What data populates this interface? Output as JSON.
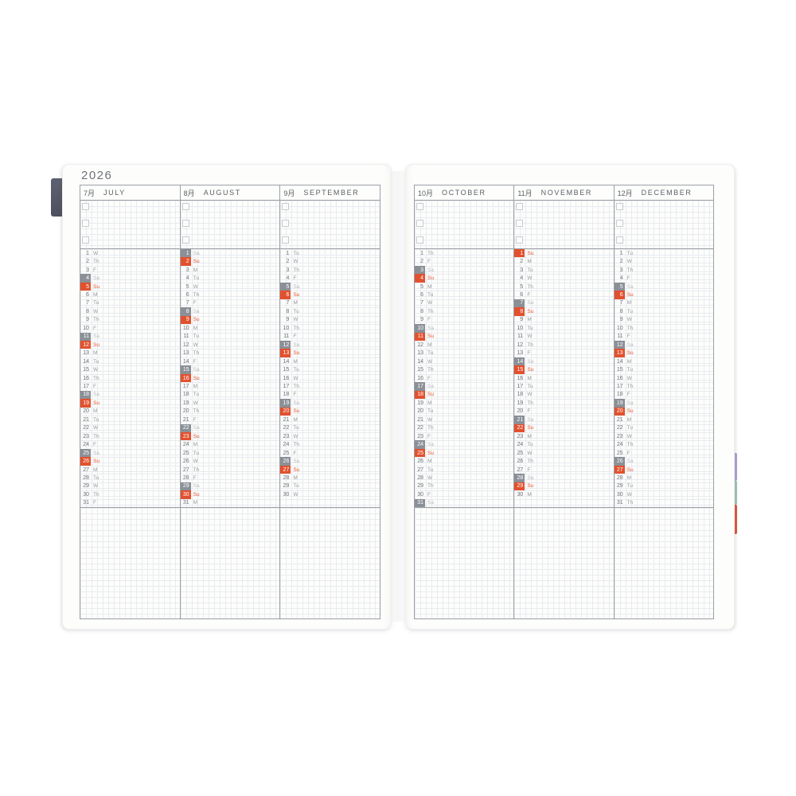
{
  "year": "2026",
  "pages": [
    {
      "side": "left",
      "show_year": true,
      "months": [
        {
          "jp": "7月",
          "en": "JULY",
          "days": [
            [
              1,
              "W"
            ],
            [
              2,
              "Th"
            ],
            [
              3,
              "F"
            ],
            [
              4,
              "Sa"
            ],
            [
              5,
              "Su"
            ],
            [
              6,
              "M"
            ],
            [
              7,
              "Tu"
            ],
            [
              8,
              "W"
            ],
            [
              9,
              "Th"
            ],
            [
              10,
              "F"
            ],
            [
              11,
              "Sa"
            ],
            [
              12,
              "Su"
            ],
            [
              13,
              "M"
            ],
            [
              14,
              "Tu"
            ],
            [
              15,
              "W"
            ],
            [
              16,
              "Th"
            ],
            [
              17,
              "F"
            ],
            [
              18,
              "Sa"
            ],
            [
              19,
              "Su"
            ],
            [
              20,
              "M"
            ],
            [
              21,
              "Tu"
            ],
            [
              22,
              "W"
            ],
            [
              23,
              "Th"
            ],
            [
              24,
              "F"
            ],
            [
              25,
              "Sa"
            ],
            [
              26,
              "Su"
            ],
            [
              27,
              "M"
            ],
            [
              28,
              "Tu"
            ],
            [
              29,
              "W"
            ],
            [
              30,
              "Th"
            ],
            [
              31,
              "F"
            ]
          ]
        },
        {
          "jp": "8月",
          "en": "AUGUST",
          "days": [
            [
              1,
              "Sa"
            ],
            [
              2,
              "Su"
            ],
            [
              3,
              "M"
            ],
            [
              4,
              "Tu"
            ],
            [
              5,
              "W"
            ],
            [
              6,
              "Th"
            ],
            [
              7,
              "F"
            ],
            [
              8,
              "Sa"
            ],
            [
              9,
              "Su"
            ],
            [
              10,
              "M"
            ],
            [
              11,
              "Tu"
            ],
            [
              12,
              "W"
            ],
            [
              13,
              "Th"
            ],
            [
              14,
              "F"
            ],
            [
              15,
              "Sa"
            ],
            [
              16,
              "Su"
            ],
            [
              17,
              "M"
            ],
            [
              18,
              "Tu"
            ],
            [
              19,
              "W"
            ],
            [
              20,
              "Th"
            ],
            [
              21,
              "F"
            ],
            [
              22,
              "Sa"
            ],
            [
              23,
              "Su"
            ],
            [
              24,
              "M"
            ],
            [
              25,
              "Tu"
            ],
            [
              26,
              "W"
            ],
            [
              27,
              "Th"
            ],
            [
              28,
              "F"
            ],
            [
              29,
              "Sa"
            ],
            [
              30,
              "Su"
            ],
            [
              31,
              "M"
            ]
          ]
        },
        {
          "jp": "9月",
          "en": "SEPTEMBER",
          "days": [
            [
              1,
              "Tu"
            ],
            [
              2,
              "W"
            ],
            [
              3,
              "Th"
            ],
            [
              4,
              "F"
            ],
            [
              5,
              "Sa"
            ],
            [
              6,
              "Su"
            ],
            [
              7,
              "M"
            ],
            [
              8,
              "Tu"
            ],
            [
              9,
              "W"
            ],
            [
              10,
              "Th"
            ],
            [
              11,
              "F"
            ],
            [
              12,
              "Sa"
            ],
            [
              13,
              "Su"
            ],
            [
              14,
              "M"
            ],
            [
              15,
              "Tu"
            ],
            [
              16,
              "W"
            ],
            [
              17,
              "Th"
            ],
            [
              18,
              "F"
            ],
            [
              19,
              "Sa"
            ],
            [
              20,
              "Su"
            ],
            [
              21,
              "M"
            ],
            [
              22,
              "Tu"
            ],
            [
              23,
              "W"
            ],
            [
              24,
              "Th"
            ],
            [
              25,
              "F"
            ],
            [
              26,
              "Sa"
            ],
            [
              27,
              "Su"
            ],
            [
              28,
              "M"
            ],
            [
              29,
              "Tu"
            ],
            [
              30,
              "W"
            ]
          ]
        }
      ]
    },
    {
      "side": "right",
      "show_year": false,
      "months": [
        {
          "jp": "10月",
          "en": "OCTOBER",
          "days": [
            [
              1,
              "Th"
            ],
            [
              2,
              "F"
            ],
            [
              3,
              "Sa"
            ],
            [
              4,
              "Su"
            ],
            [
              5,
              "M"
            ],
            [
              6,
              "Tu"
            ],
            [
              7,
              "W"
            ],
            [
              8,
              "Th"
            ],
            [
              9,
              "F"
            ],
            [
              10,
              "Sa"
            ],
            [
              11,
              "Su"
            ],
            [
              12,
              "M"
            ],
            [
              13,
              "Tu"
            ],
            [
              14,
              "W"
            ],
            [
              15,
              "Th"
            ],
            [
              16,
              "F"
            ],
            [
              17,
              "Sa"
            ],
            [
              18,
              "Su"
            ],
            [
              19,
              "M"
            ],
            [
              20,
              "Tu"
            ],
            [
              21,
              "W"
            ],
            [
              22,
              "Th"
            ],
            [
              23,
              "F"
            ],
            [
              24,
              "Sa"
            ],
            [
              25,
              "Su"
            ],
            [
              26,
              "M"
            ],
            [
              27,
              "Tu"
            ],
            [
              28,
              "W"
            ],
            [
              29,
              "Th"
            ],
            [
              30,
              "F"
            ],
            [
              31,
              "Sa"
            ]
          ]
        },
        {
          "jp": "11月",
          "en": "NOVEMBER",
          "days": [
            [
              1,
              "Su"
            ],
            [
              2,
              "M"
            ],
            [
              3,
              "Tu"
            ],
            [
              4,
              "W"
            ],
            [
              5,
              "Th"
            ],
            [
              6,
              "F"
            ],
            [
              7,
              "Sa"
            ],
            [
              8,
              "Su"
            ],
            [
              9,
              "M"
            ],
            [
              10,
              "Tu"
            ],
            [
              11,
              "W"
            ],
            [
              12,
              "Th"
            ],
            [
              13,
              "F"
            ],
            [
              14,
              "Sa"
            ],
            [
              15,
              "Su"
            ],
            [
              16,
              "M"
            ],
            [
              17,
              "Tu"
            ],
            [
              18,
              "W"
            ],
            [
              19,
              "Th"
            ],
            [
              20,
              "F"
            ],
            [
              21,
              "Sa"
            ],
            [
              22,
              "Su"
            ],
            [
              23,
              "M"
            ],
            [
              24,
              "Tu"
            ],
            [
              25,
              "W"
            ],
            [
              26,
              "Th"
            ],
            [
              27,
              "F"
            ],
            [
              28,
              "Sa"
            ],
            [
              29,
              "Su"
            ],
            [
              30,
              "M"
            ]
          ]
        },
        {
          "jp": "12月",
          "en": "DECEMBER",
          "days": [
            [
              1,
              "Tu"
            ],
            [
              2,
              "W"
            ],
            [
              3,
              "Th"
            ],
            [
              4,
              "F"
            ],
            [
              5,
              "Sa"
            ],
            [
              6,
              "Su"
            ],
            [
              7,
              "M"
            ],
            [
              8,
              "Tu"
            ],
            [
              9,
              "W"
            ],
            [
              10,
              "Th"
            ],
            [
              11,
              "F"
            ],
            [
              12,
              "Sa"
            ],
            [
              13,
              "Su"
            ],
            [
              14,
              "M"
            ],
            [
              15,
              "Tu"
            ],
            [
              16,
              "W"
            ],
            [
              17,
              "Th"
            ],
            [
              18,
              "F"
            ],
            [
              19,
              "Sa"
            ],
            [
              20,
              "Su"
            ],
            [
              21,
              "M"
            ],
            [
              22,
              "Tu"
            ],
            [
              23,
              "W"
            ],
            [
              24,
              "Th"
            ],
            [
              25,
              "F"
            ],
            [
              26,
              "Sa"
            ],
            [
              27,
              "Su"
            ],
            [
              28,
              "M"
            ],
            [
              29,
              "Tu"
            ],
            [
              30,
              "W"
            ],
            [
              31,
              "Th"
            ]
          ]
        }
      ]
    }
  ],
  "checkboxes_per_month": 3,
  "day_rows_per_column": 31,
  "colors": {
    "sunday_highlight": "#e2512e",
    "saturday_highlight": "#8b9097",
    "weekday_label_text": "#94999d",
    "saturday_label_text": "#b5babd",
    "day_number_text": "#6a6f74",
    "table_line": "#9ba0a5",
    "grid_line": "#e8ebee",
    "bookmark_tab": "#5c6070",
    "edge_tab_purple": "#b5a3d1",
    "edge_tab_teal": "#a3c6bc",
    "edge_tab_red": "#e25840"
  }
}
